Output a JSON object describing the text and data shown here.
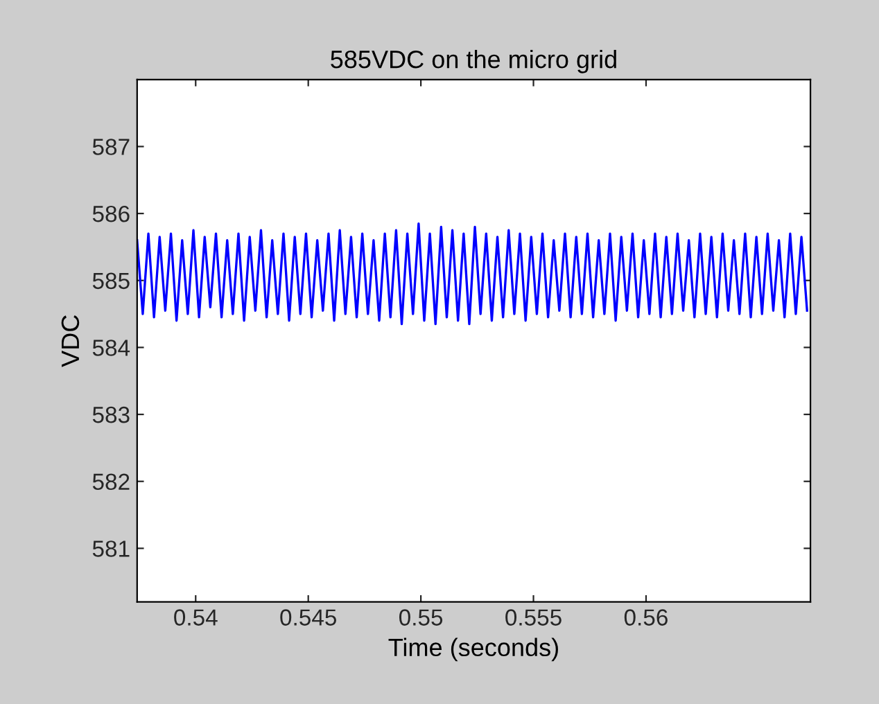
{
  "chart_data": {
    "type": "line",
    "title": "585VDC on the micro grid",
    "xlabel": "Time (seconds)",
    "ylabel": "VDC",
    "xlim": [
      0.5374,
      0.5673
    ],
    "ylim": [
      580.2,
      588
    ],
    "xticks": [
      0.54,
      0.545,
      0.55,
      0.555,
      0.56
    ],
    "yticks": [
      581,
      582,
      583,
      584,
      585,
      586,
      587
    ],
    "grid": false,
    "marker": "none",
    "line_style": "solid",
    "series": [
      {
        "color": "#0000ff",
        "x": [
          0.5374,
          0.53765,
          0.5379,
          0.53815,
          0.5384,
          0.53865,
          0.5389,
          0.53915,
          0.5394,
          0.53965,
          0.5399,
          0.54015,
          0.5404,
          0.54065,
          0.5409,
          0.54115,
          0.5414,
          0.54165,
          0.5419,
          0.54215,
          0.5424,
          0.54265,
          0.5429,
          0.54315,
          0.5434,
          0.54365,
          0.5439,
          0.54415,
          0.5444,
          0.54465,
          0.5449,
          0.54515,
          0.5454,
          0.54565,
          0.5459,
          0.54615,
          0.5464,
          0.54665,
          0.5469,
          0.54715,
          0.5474,
          0.54765,
          0.5479,
          0.54815,
          0.5484,
          0.54865,
          0.5489,
          0.54915,
          0.5494,
          0.54965,
          0.5499,
          0.55015,
          0.5504,
          0.55065,
          0.5509,
          0.55115,
          0.5514,
          0.55165,
          0.5519,
          0.55215,
          0.5524,
          0.55265,
          0.5529,
          0.55315,
          0.5534,
          0.55365,
          0.5539,
          0.55415,
          0.5544,
          0.55465,
          0.5549,
          0.55515,
          0.5554,
          0.55565,
          0.5559,
          0.55615,
          0.5564,
          0.55665,
          0.5569,
          0.55715,
          0.5574,
          0.55765,
          0.5579,
          0.55815,
          0.5584,
          0.55865,
          0.5589,
          0.55915,
          0.5594,
          0.55965,
          0.5599,
          0.56015,
          0.5604,
          0.56065,
          0.5609,
          0.56115,
          0.5614,
          0.56165,
          0.5619,
          0.56215,
          0.5624,
          0.56265,
          0.5629,
          0.56315,
          0.5634,
          0.56365,
          0.5639,
          0.56415,
          0.5644,
          0.56465,
          0.5649,
          0.56515,
          0.5654,
          0.56565,
          0.5659,
          0.56615,
          0.5664,
          0.56665,
          0.5669,
          0.56715
        ],
        "values": [
          585.6,
          584.5,
          585.7,
          584.45,
          585.65,
          584.55,
          585.7,
          584.4,
          585.6,
          584.5,
          585.75,
          584.45,
          585.65,
          584.6,
          585.7,
          584.45,
          585.6,
          584.5,
          585.7,
          584.4,
          585.65,
          584.55,
          585.75,
          584.45,
          585.6,
          584.5,
          585.7,
          584.4,
          585.65,
          584.5,
          585.7,
          584.45,
          585.6,
          584.55,
          585.7,
          584.4,
          585.75,
          584.5,
          585.65,
          584.45,
          585.7,
          584.5,
          585.6,
          584.4,
          585.7,
          584.45,
          585.75,
          584.35,
          585.7,
          584.5,
          585.85,
          584.4,
          585.7,
          584.35,
          585.8,
          584.45,
          585.75,
          584.4,
          585.7,
          584.35,
          585.8,
          584.5,
          585.7,
          584.4,
          585.65,
          584.45,
          585.75,
          584.5,
          585.7,
          584.4,
          585.65,
          584.5,
          585.7,
          584.45,
          585.6,
          584.55,
          585.7,
          584.45,
          585.65,
          584.5,
          585.7,
          584.45,
          585.6,
          584.5,
          585.7,
          584.4,
          585.65,
          584.55,
          585.7,
          584.45,
          585.6,
          584.5,
          585.7,
          584.45,
          585.65,
          584.5,
          585.7,
          584.55,
          585.6,
          584.45,
          585.7,
          584.5,
          585.65,
          584.45,
          585.7,
          584.55,
          585.6,
          584.5,
          585.7,
          584.45,
          585.65,
          584.5,
          585.7,
          584.55,
          585.6,
          584.45,
          585.7,
          584.5,
          585.65,
          584.55
        ]
      }
    ]
  }
}
